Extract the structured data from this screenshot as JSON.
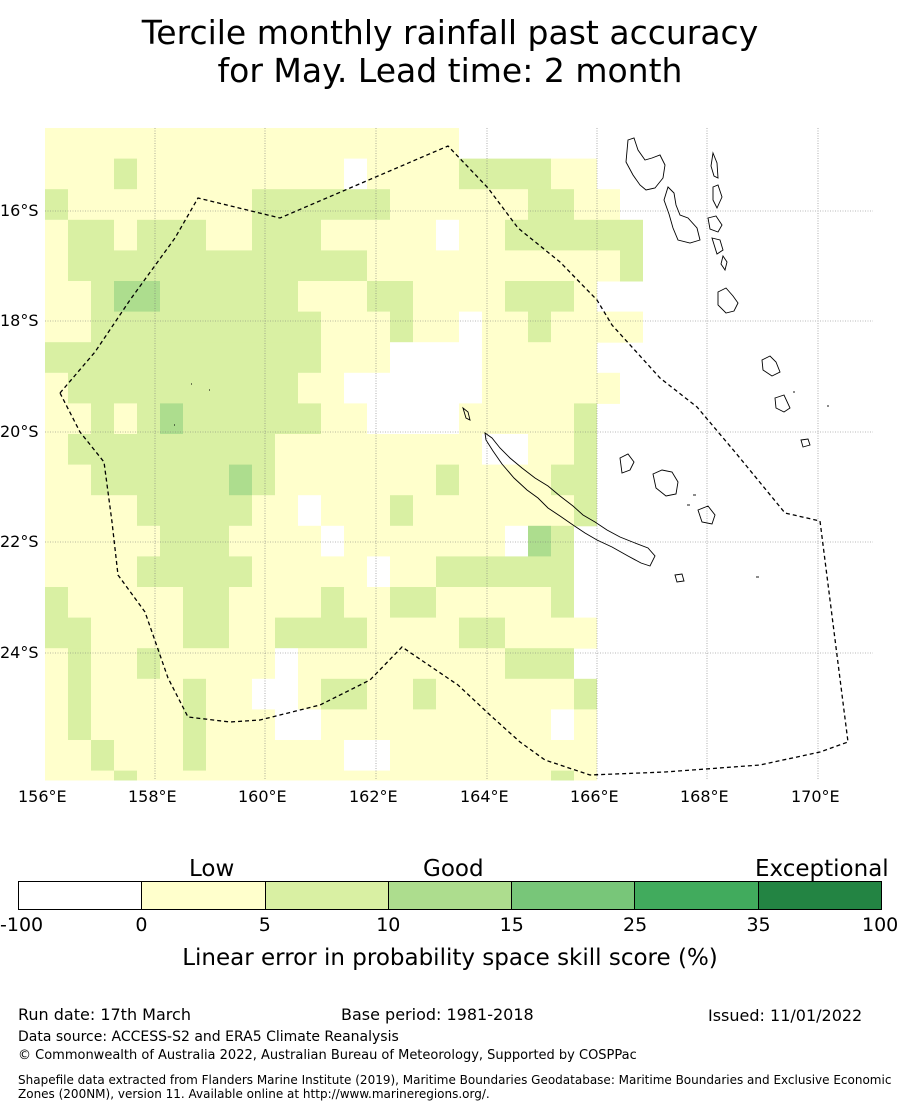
{
  "title_line1": "Tercile monthly rainfall past accuracy",
  "title_line2": "for May. Lead time: 2 month",
  "map": {
    "lon_min": 156,
    "lon_max": 171,
    "lat_top": -14.5,
    "lat_bottom": -26.3,
    "lon_ticks": [
      "156°E",
      "158°E",
      "160°E",
      "162°E",
      "164°E",
      "166°E",
      "168°E",
      "170°E"
    ],
    "lat_ticks": [
      "16°S",
      "18°S",
      "20°S",
      "22°S",
      "24°S"
    ],
    "skill_grid_legend_classes": {
      "key": [
        "W = below 0 (-100 to 0)",
        "Y = 0 to 5",
        "L = 5 to 10",
        "M = 10 to 15"
      ],
      "rows": [
        "YYYYYYYYYYYYYYYYYY",
        "YYYLYYYYYYYYYWYYYYLLLLYY",
        "LYYYYYYYYLLLLLLYYYYYYLLYY",
        "YLLYLLLYYLLLYYYYYWYYLLLLLL",
        "YLLLLLLLLLLLLLYYYYYYYYYYYL",
        "YYLMMLLLLLLYYYLLYYYYLLLY",
        "YYLLLLLLLLLLYYYLYYWYYLYYYY",
        "LLLLLLLLLLLLYYYWWWWYYYYY",
        "YLLLLLLLLLLYYWWWWWWYYYYYY",
        "YYLYLMLLLLLLYYWWWWYYYYYL",
        "YLLLLLLLLLYYYYYYYYYWWYYL",
        "YYLLLLLLMLYYYYYYYLYYYYLL",
        "YYYYLLLLLYYWYYYLYYYYYYYL",
        "YYYYYLLLYYYYWYYYYYYYWML",
        "YYYYLLLLLYYYYYWYYLLLLLL",
        "LYYYYYLLYYYYLYYLLYYYYYL",
        "LLYYYYLLYYLLLLYYYYLLYYYY",
        "YLYYLYYYYYWYYYYYYYYYLLL",
        "YLYYYYLYYWWYLLYYLYYYYYYL",
        "YLYYYYLYYYWWYYYYYYYYYYWY",
        "YYLYYYLYYYYYYWWYYYYYYYYY",
        "YYYLYYYYYYYYYYYYYYYYYYLY"
      ]
    }
  },
  "legend": {
    "category_low": "Low",
    "category_good": "Good",
    "category_exceptional": "Exceptional",
    "colors": [
      "#ffffff",
      "#ffffcc",
      "#d9f0a3",
      "#addd8e",
      "#78c679",
      "#41ab5d",
      "#238443"
    ],
    "ticks": [
      "-100",
      "0",
      "5",
      "10",
      "15",
      "25",
      "35",
      "100"
    ],
    "title": "Linear error in probability space skill score (%)"
  },
  "footer": {
    "run_date": "Run date: 17th March",
    "base_period": "Base period: 1981-2018",
    "issued": "Issued: 11/01/2022",
    "data_source": "Data source: ACCESS-S2 and ERA5 Climate Reanalysis",
    "copyright": "© Commonwealth of Australia 2022, Australian Bureau of Meteorology, Supported by COSPPac",
    "shapefile_note": "Shapefile data extracted from Flanders Marine Institute (2019), Maritime Boundaries Geodatabase: Maritime Boundaries and Exclusive Economic Zones (200NM), version 11. Available online at http://www.marineregions.org/."
  }
}
